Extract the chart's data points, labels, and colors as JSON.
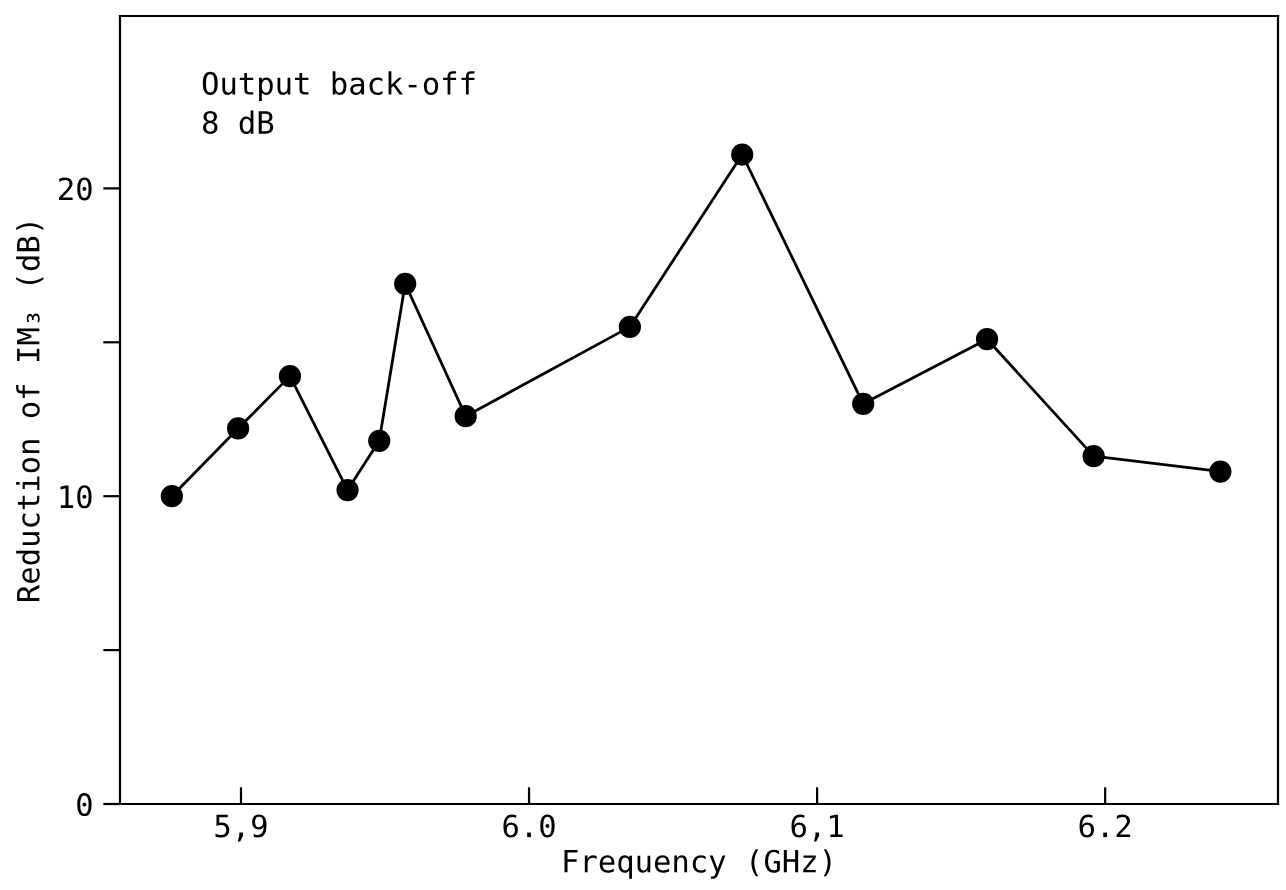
{
  "chart_data": {
    "type": "line",
    "xlabel": "Frequency (GHz)",
    "ylabel": "Reduction of IM₃ (dB)",
    "annotations": [
      "Output back-off\n8 dB"
    ],
    "x": [
      5.876,
      5.899,
      5.917,
      5.937,
      5.948,
      5.957,
      5.978,
      6.035,
      6.074,
      6.116,
      6.159,
      6.196,
      6.24
    ],
    "series": [
      {
        "color": "#000000",
        "values": [
          10.0,
          12.2,
          13.9,
          10.2,
          11.8,
          16.9,
          12.6,
          15.5,
          21.1,
          13.0,
          15.1,
          11.3,
          10.8
        ]
      }
    ],
    "xlim": [
      5.858,
      6.26
    ],
    "xticks": [
      {
        "value": 5.9,
        "label": "5,9"
      },
      {
        "value": 6.0,
        "label": "6.0"
      },
      {
        "value": 6.1,
        "label": "6,1"
      },
      {
        "value": 6.2,
        "label": "6.2"
      }
    ],
    "ylim": [
      0,
      25.6
    ],
    "yticks": [
      0,
      {
        "value": 5,
        "label": null
      },
      10,
      {
        "value": 15,
        "label": null
      },
      20
    ],
    "marker": "circle",
    "line_style": "solid",
    "grid": false,
    "legend": false
  }
}
